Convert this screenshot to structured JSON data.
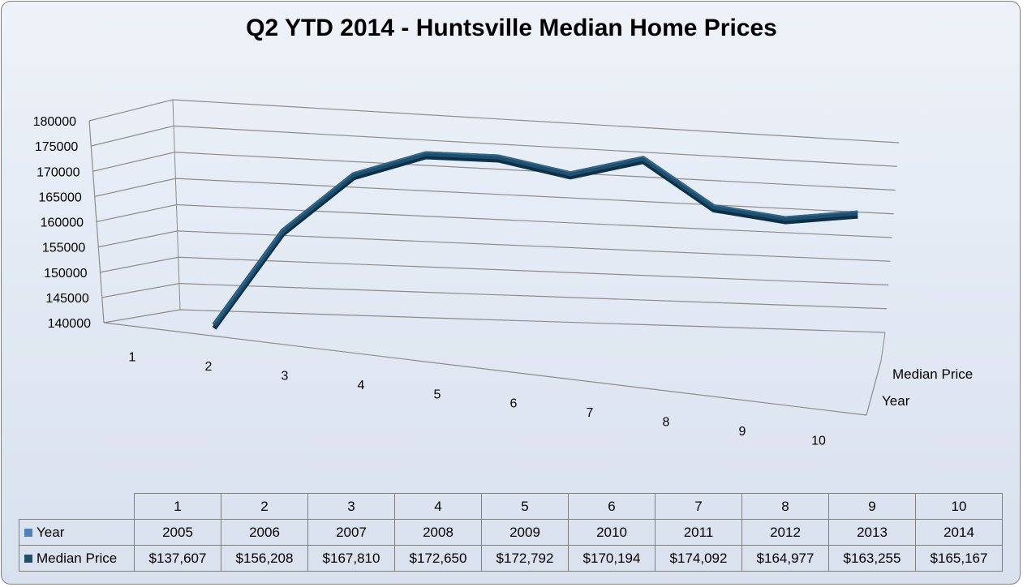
{
  "title": "Q2 YTD 2014 - Huntsville Median Home Prices",
  "chart_data": {
    "type": "line",
    "style": "3d",
    "categories": [
      "1",
      "2",
      "3",
      "4",
      "5",
      "6",
      "7",
      "8",
      "9",
      "10"
    ],
    "series": [
      {
        "name": "Year",
        "values": [
          2005,
          2006,
          2007,
          2008,
          2009,
          2010,
          2011,
          2012,
          2013,
          2014
        ],
        "color": "#4f81bd"
      },
      {
        "name": "Median Price",
        "values": [
          137607,
          156208,
          167810,
          172650,
          172792,
          170194,
          174092,
          164977,
          163255,
          165167
        ],
        "color": "#1f4e6e"
      }
    ],
    "ylim": [
      140000,
      180000
    ],
    "yticks": [
      180000,
      175000,
      170000,
      165000,
      160000,
      155000,
      150000,
      145000,
      140000
    ],
    "depth_labels": [
      "Median Price",
      "Year"
    ],
    "grid": true
  },
  "table": {
    "headers": [
      "1",
      "2",
      "3",
      "4",
      "5",
      "6",
      "7",
      "8",
      "9",
      "10"
    ],
    "rows": [
      {
        "label": "Year",
        "color": "#4f81bd",
        "cells": [
          "2005",
          "2006",
          "2007",
          "2008",
          "2009",
          "2010",
          "2011",
          "2012",
          "2013",
          "2014"
        ]
      },
      {
        "label": "Median Price",
        "color": "#1f4e6e",
        "cells": [
          "$137,607",
          "$156,208",
          "$167,810",
          "$172,650",
          "$172,792",
          "$170,194",
          "$174,092",
          "$164,977",
          "$163,255",
          "$165,167"
        ]
      }
    ]
  }
}
